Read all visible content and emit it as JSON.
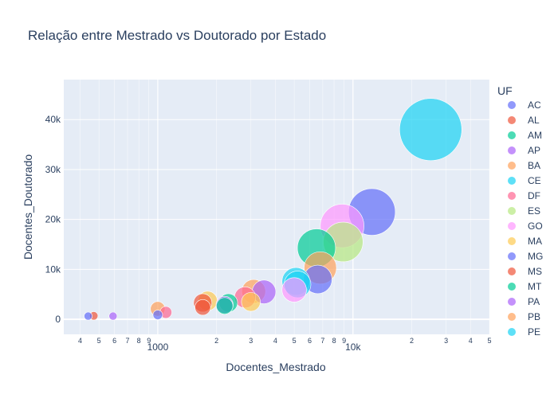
{
  "chart_data": {
    "type": "scatter",
    "title": "Relação entre Mestrado vs Doutorado por Estado",
    "xlabel": "Docentes_Mestrado",
    "ylabel": "Docentes_Doutorado",
    "x_scale": "log",
    "xlim": [
      330,
      50000
    ],
    "ylim": [
      -3000,
      48000
    ],
    "y_ticks": [
      0,
      10000,
      20000,
      30000,
      40000
    ],
    "y_tick_labels": [
      "0",
      "10k",
      "20k",
      "30k",
      "40k"
    ],
    "x_major_ticks": [
      1000,
      10000
    ],
    "x_major_labels": [
      "1000",
      "10k"
    ],
    "x_minor_ticks": [
      400,
      500,
      600,
      700,
      800,
      900,
      2000,
      3000,
      4000,
      5000,
      6000,
      7000,
      8000,
      9000,
      20000,
      30000,
      40000,
      50000
    ],
    "x_minor_labels": [
      "4",
      "5",
      "6",
      "7",
      "8",
      "9",
      "2",
      "3",
      "4",
      "5",
      "6",
      "7",
      "8",
      "9",
      "2",
      "3",
      "4",
      "5"
    ],
    "legend_title": "UF",
    "legend_position": "right",
    "colors": {
      "plot_bg": "#e5ecf6",
      "grid": "#ffffff",
      "text": "#2a3f5f",
      "accent": "#636efa"
    },
    "series": [
      {
        "name": "AC",
        "color": "#636efa",
        "points": [
          {
            "x": 440,
            "y": 650
          }
        ]
      },
      {
        "name": "AL",
        "color": "#EF553B",
        "points": [
          {
            "x": 470,
            "y": 700
          }
        ]
      },
      {
        "name": "AM",
        "color": "#00cc96",
        "points": [
          {
            "x": 2300,
            "y": 3300
          }
        ]
      },
      {
        "name": "AP",
        "color": "#ab63fa",
        "points": [
          {
            "x": 590,
            "y": 650
          }
        ]
      },
      {
        "name": "BA",
        "color": "#FFA15A",
        "points": [
          {
            "x": 1000,
            "y": 2100
          },
          {
            "x": 3100,
            "y": 5600
          }
        ]
      },
      {
        "name": "CE",
        "color": "#19d3f3",
        "points": [
          {
            "x": 5200,
            "y": 7000
          },
          {
            "x": 25000,
            "y": 38000
          }
        ]
      },
      {
        "name": "DF",
        "color": "#FF6692",
        "points": [
          {
            "x": 1100,
            "y": 1400
          },
          {
            "x": 2800,
            "y": 4400
          }
        ]
      },
      {
        "name": "ES",
        "color": "#B6E880",
        "points": [
          {
            "x": 8900,
            "y": 15500
          }
        ]
      },
      {
        "name": "GO",
        "color": "#FF97FF",
        "points": [
          {
            "x": 5000,
            "y": 5900
          },
          {
            "x": 8800,
            "y": 18700
          }
        ]
      },
      {
        "name": "MA",
        "color": "#FECB52",
        "points": [
          {
            "x": 1800,
            "y": 3700
          },
          {
            "x": 3000,
            "y": 3500
          }
        ]
      },
      {
        "name": "MG",
        "color": "#636efa",
        "points": [
          {
            "x": 1000,
            "y": 900
          },
          {
            "x": 6600,
            "y": 8000
          },
          {
            "x": 12500,
            "y": 21500
          }
        ]
      },
      {
        "name": "MS",
        "color": "#EF553B",
        "points": [
          {
            "x": 1700,
            "y": 2400
          },
          {
            "x": 1700,
            "y": 3300
          }
        ]
      },
      {
        "name": "MT",
        "color": "#00cc96",
        "points": [
          {
            "x": 2200,
            "y": 2700
          },
          {
            "x": 6500,
            "y": 14300
          }
        ]
      },
      {
        "name": "PA",
        "color": "#ab63fa",
        "points": [
          {
            "x": 2200,
            "y": 2900
          },
          {
            "x": 3500,
            "y": 5500
          }
        ]
      },
      {
        "name": "PB",
        "color": "#FFA15A",
        "points": [
          {
            "x": 6800,
            "y": 10300
          }
        ]
      },
      {
        "name": "PE",
        "color": "#19d3f3",
        "points": [
          {
            "x": 5100,
            "y": 7600
          }
        ]
      }
    ]
  }
}
